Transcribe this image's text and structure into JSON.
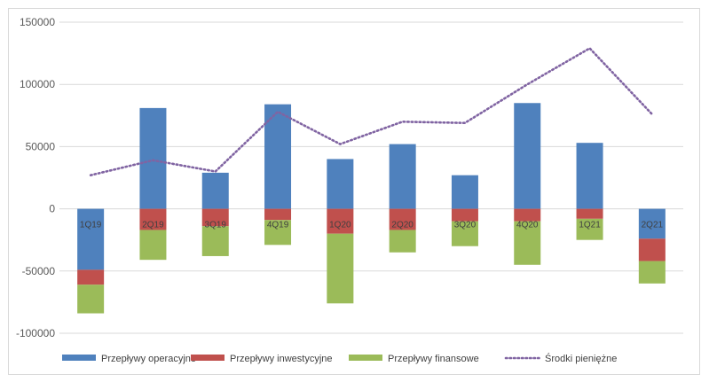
{
  "chart_data": {
    "type": "bar",
    "stacked": true,
    "categories": [
      "1Q19",
      "2Q19",
      "3Q19",
      "4Q19",
      "1Q20",
      "2Q20",
      "3Q20",
      "4Q20",
      "1Q21",
      "2Q21"
    ],
    "series": [
      {
        "name": "Przepływy operacyjne",
        "type": "bar",
        "color": "#4f81bd",
        "values": [
          -49000,
          81000,
          29000,
          84000,
          40000,
          52000,
          27000,
          85000,
          53000,
          -24000
        ]
      },
      {
        "name": "Przepływy inwestycyjne",
        "type": "bar",
        "color": "#c0504d",
        "values": [
          -12000,
          -17000,
          -14000,
          -9000,
          -20000,
          -17000,
          -10000,
          -10000,
          -8000,
          -18000
        ]
      },
      {
        "name": "Przepływy finansowe",
        "type": "bar",
        "color": "#9bbb59",
        "values": [
          -23000,
          -24000,
          -24000,
          -20000,
          -56000,
          -18000,
          -20000,
          -35000,
          -17000,
          -18000
        ]
      },
      {
        "name": "Środki pieniężne",
        "type": "line",
        "style": "dotted",
        "color": "#8064a2",
        "values": [
          27000,
          39000,
          30000,
          78000,
          52000,
          70000,
          69000,
          100000,
          129000,
          76000
        ]
      }
    ],
    "ylim": [
      -100000,
      150000
    ],
    "yticks": [
      -100000,
      -50000,
      0,
      50000,
      100000,
      150000
    ],
    "ytick_labels": [
      "-100000",
      "-50000",
      "0",
      "50000",
      "100000",
      "150000"
    ],
    "grid": true,
    "legend_position": "bottom"
  }
}
